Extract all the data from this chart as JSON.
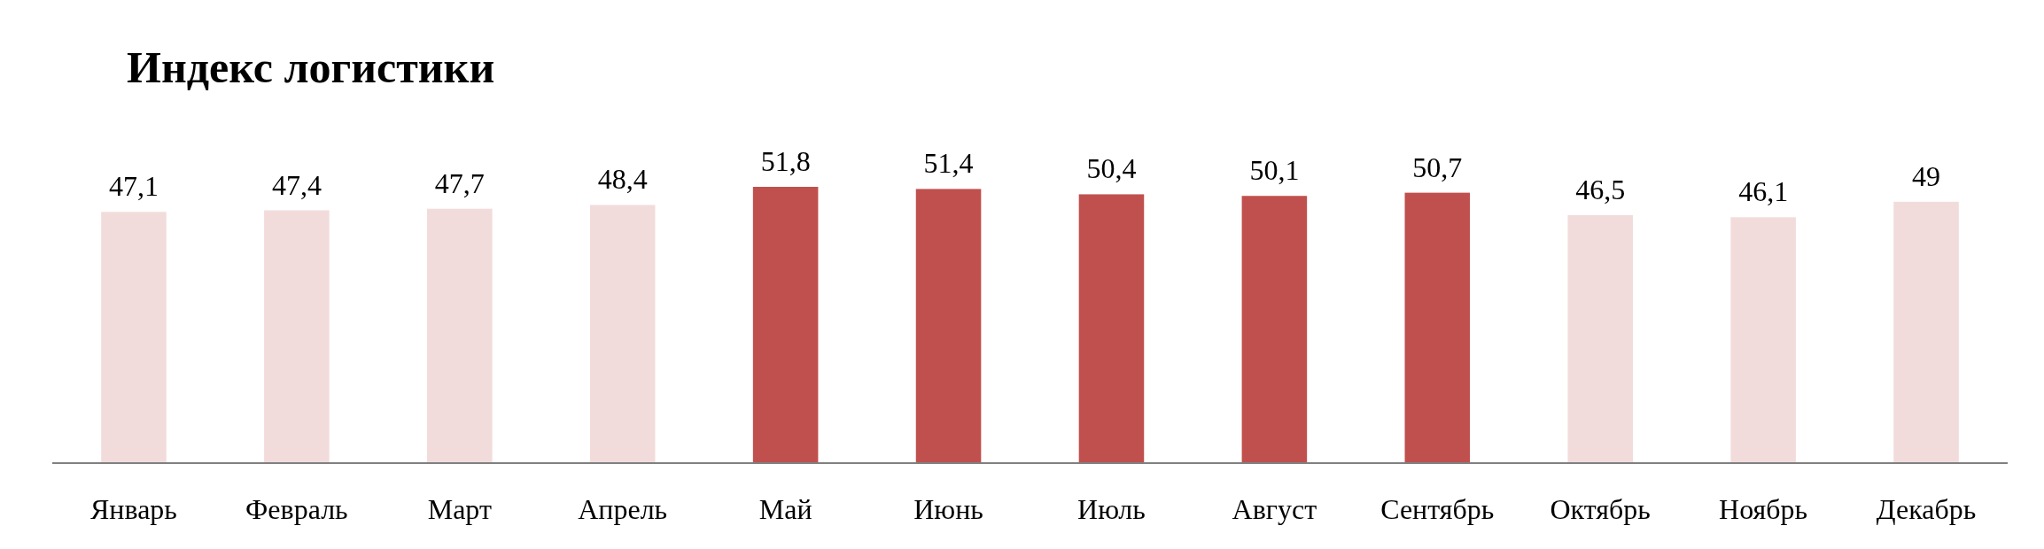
{
  "chart_data": {
    "type": "bar",
    "title": "Индекс логистики",
    "categories": [
      "Январь",
      "Февраль",
      "Март",
      "Апрель",
      "Май",
      "Июнь",
      "Июль",
      "Август",
      "Сентябрь",
      "Октябрь",
      "Ноябрь",
      "Декабрь"
    ],
    "values": [
      47.1,
      47.4,
      47.7,
      48.4,
      51.8,
      51.4,
      50.4,
      50.1,
      50.7,
      46.5,
      46.1,
      49
    ],
    "colors": [
      "#f2dcdb",
      "#f2dcdb",
      "#f2dcdb",
      "#f2dcdb",
      "#c0504d",
      "#c0504d",
      "#c0504d",
      "#c0504d",
      "#c0504d",
      "#f2dcdb",
      "#f2dcdb",
      "#f2dcdb"
    ],
    "value_labels": [
      "47,1",
      "47,4",
      "47,7",
      "48,4",
      "51,8",
      "51,4",
      "50,4",
      "50,1",
      "50,7",
      "46,5",
      "46,1",
      "49"
    ],
    "data_labels": false
  }
}
